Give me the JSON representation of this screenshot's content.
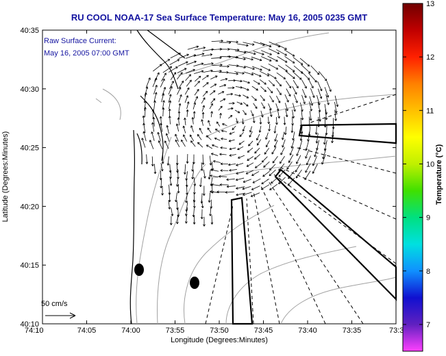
{
  "title": "RU COOL  NOAA-17  Sea Surface Temperature:  May 16, 2005 0235 GMT",
  "current_label": "Raw Surface Current:",
  "current_time": "May 16, 2005 07:00 GMT",
  "scale_label": "50 cm/s",
  "map": {
    "xlabel": "Longitude (Degrees:Minutes)",
    "ylabel": "Latitude (Degrees:Minutes)",
    "x_ticks": [
      "74:10",
      "74:05",
      "74:00",
      "73:55",
      "73:50",
      "73:45",
      "73:40",
      "73:35",
      "73:3"
    ],
    "y_ticks": [
      "40:35",
      "40:30",
      "40:25",
      "40:20",
      "40:15",
      "40:10"
    ],
    "colors": {
      "frame": "#000000",
      "contour": "#999999",
      "coast": "#000000",
      "vectors": "#000000"
    }
  },
  "colorbar": {
    "label": "Temperature (°C)",
    "ticks": [
      "13",
      "12",
      "11",
      "10",
      "9",
      "8",
      "7"
    ],
    "min": 6.5,
    "max": 13,
    "colors": [
      "#ff40ff",
      "#6020c0",
      "#1010d0",
      "#1090ff",
      "#00e0e0",
      "#00e080",
      "#40e000",
      "#c0f000",
      "#ffff00",
      "#ffc000",
      "#ff8000",
      "#ff2000",
      "#c00000",
      "#700000"
    ]
  }
}
